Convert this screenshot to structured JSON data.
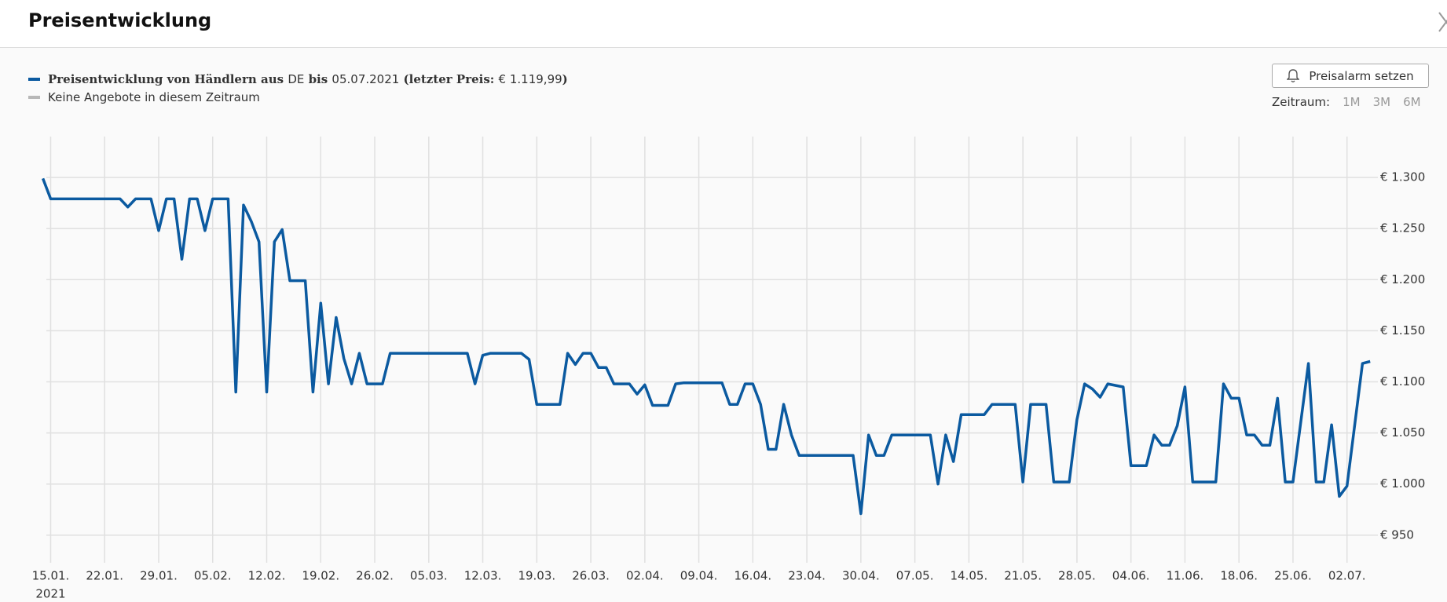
{
  "header": {
    "title": "Preisentwicklung"
  },
  "legend": [
    {
      "parts": [
        "Preisentwicklung von Händlern aus ",
        "DE",
        " bis ",
        "05.07.2021",
        " (letzter Preis: ",
        "€ 1.119,99",
        ")"
      ],
      "color": "#0b5aa0"
    },
    {
      "parts": [
        "Keine Angebote in diesem Zeitraum"
      ],
      "color": "#b8b8b8"
    }
  ],
  "controls": {
    "button": "Preisalarm setzen",
    "range_label": "Zeitraum:",
    "ranges": [
      "1M",
      "3M",
      "6M"
    ]
  },
  "chart_data": {
    "type": "line",
    "color": "#0b5aa0",
    "grid": true,
    "x_year_label": "2021",
    "xlim": [
      "2021-01-12",
      "2021-07-06"
    ],
    "ylim": [
      923,
      1340
    ],
    "xticks": [
      {
        "value": "2021-01-15",
        "label": "15.01."
      },
      {
        "value": "2021-01-22",
        "label": "22.01."
      },
      {
        "value": "2021-01-29",
        "label": "29.01."
      },
      {
        "value": "2021-02-05",
        "label": "05.02."
      },
      {
        "value": "2021-02-12",
        "label": "12.02."
      },
      {
        "value": "2021-02-19",
        "label": "19.02."
      },
      {
        "value": "2021-02-26",
        "label": "26.02."
      },
      {
        "value": "2021-03-05",
        "label": "05.03."
      },
      {
        "value": "2021-03-12",
        "label": "12.03."
      },
      {
        "value": "2021-03-19",
        "label": "19.03."
      },
      {
        "value": "2021-03-26",
        "label": "26.03."
      },
      {
        "value": "2021-04-02",
        "label": "02.04."
      },
      {
        "value": "2021-04-09",
        "label": "09.04."
      },
      {
        "value": "2021-04-16",
        "label": "16.04."
      },
      {
        "value": "2021-04-23",
        "label": "23.04."
      },
      {
        "value": "2021-04-30",
        "label": "30.04."
      },
      {
        "value": "2021-05-07",
        "label": "07.05."
      },
      {
        "value": "2021-05-14",
        "label": "14.05."
      },
      {
        "value": "2021-05-21",
        "label": "21.05."
      },
      {
        "value": "2021-05-28",
        "label": "28.05."
      },
      {
        "value": "2021-06-04",
        "label": "04.06."
      },
      {
        "value": "2021-06-11",
        "label": "11.06."
      },
      {
        "value": "2021-06-18",
        "label": "18.06."
      },
      {
        "value": "2021-06-25",
        "label": "25.06."
      },
      {
        "value": "2021-07-02",
        "label": "02.07."
      }
    ],
    "yticks": [
      {
        "value": 950,
        "label": "€ 950"
      },
      {
        "value": 1000,
        "label": "€ 1.000"
      },
      {
        "value": 1050,
        "label": "€ 1.050"
      },
      {
        "value": 1100,
        "label": "€ 1.100"
      },
      {
        "value": 1150,
        "label": "€ 1.150"
      },
      {
        "value": 1200,
        "label": "€ 1.200"
      },
      {
        "value": 1250,
        "label": "€ 1.250"
      },
      {
        "value": 1300,
        "label": "€ 1.300"
      }
    ],
    "x": [
      "2021-01-14",
      "2021-01-15",
      "2021-01-24",
      "2021-01-25",
      "2021-01-26",
      "2021-01-28",
      "2021-01-29",
      "2021-01-30",
      "2021-01-31",
      "2021-02-01",
      "2021-02-02",
      "2021-02-03",
      "2021-02-04",
      "2021-02-05",
      "2021-02-07",
      "2021-02-08",
      "2021-02-09",
      "2021-02-10",
      "2021-02-11",
      "2021-02-12",
      "2021-02-13",
      "2021-02-14",
      "2021-02-15",
      "2021-02-17",
      "2021-02-18",
      "2021-02-19",
      "2021-02-20",
      "2021-02-21",
      "2021-02-22",
      "2021-02-23",
      "2021-02-24",
      "2021-02-25",
      "2021-02-27",
      "2021-02-28",
      "2021-03-10",
      "2021-03-11",
      "2021-03-12",
      "2021-03-13",
      "2021-03-17",
      "2021-03-18",
      "2021-03-19",
      "2021-03-22",
      "2021-03-23",
      "2021-03-24",
      "2021-03-25",
      "2021-03-26",
      "2021-03-27",
      "2021-03-28",
      "2021-03-29",
      "2021-03-31",
      "2021-04-01",
      "2021-04-02",
      "2021-04-03",
      "2021-04-05",
      "2021-04-06",
      "2021-04-07",
      "2021-04-12",
      "2021-04-13",
      "2021-04-14",
      "2021-04-15",
      "2021-04-16",
      "2021-04-17",
      "2021-04-18",
      "2021-04-19",
      "2021-04-20",
      "2021-04-21",
      "2021-04-22",
      "2021-04-29",
      "2021-04-30",
      "2021-05-01",
      "2021-05-02",
      "2021-05-03",
      "2021-05-04",
      "2021-05-09",
      "2021-05-10",
      "2021-05-11",
      "2021-05-12",
      "2021-05-13",
      "2021-05-16",
      "2021-05-17",
      "2021-05-20",
      "2021-05-21",
      "2021-05-22",
      "2021-05-24",
      "2021-05-25",
      "2021-05-27",
      "2021-05-28",
      "2021-05-29",
      "2021-05-30",
      "2021-05-31",
      "2021-06-01",
      "2021-06-03",
      "2021-06-04",
      "2021-06-06",
      "2021-06-07",
      "2021-06-08",
      "2021-06-09",
      "2021-06-10",
      "2021-06-11",
      "2021-06-12",
      "2021-06-15",
      "2021-06-16",
      "2021-06-17",
      "2021-06-18",
      "2021-06-19",
      "2021-06-20",
      "2021-06-21",
      "2021-06-22",
      "2021-06-23",
      "2021-06-24",
      "2021-06-25",
      "2021-06-27",
      "2021-06-28",
      "2021-06-29",
      "2021-06-30",
      "2021-07-01",
      "2021-07-02",
      "2021-07-04",
      "2021-07-05"
    ],
    "series": [
      {
        "values": [
          1299,
          1279,
          1279,
          1271,
          1279,
          1279,
          1248,
          1279,
          1279,
          1220,
          1279,
          1279,
          1248,
          1279,
          1279,
          1090,
          1273,
          1257,
          1237,
          1090,
          1237,
          1249,
          1199,
          1199,
          1090,
          1177,
          1098,
          1163,
          1123,
          1098,
          1128,
          1098,
          1098,
          1128,
          1128,
          1098,
          1126,
          1128,
          1128,
          1122,
          1078,
          1078,
          1128,
          1117,
          1128,
          1128,
          1114,
          1114,
          1098,
          1098,
          1088,
          1097,
          1077,
          1077,
          1098,
          1099,
          1099,
          1078,
          1078,
          1098,
          1098,
          1078,
          1034,
          1034,
          1078,
          1048,
          1028,
          1028,
          971,
          1048,
          1028,
          1028,
          1048,
          1048,
          1000,
          1048,
          1022,
          1068,
          1068,
          1078,
          1078,
          1002,
          1078,
          1078,
          1002,
          1002,
          1063,
          1098,
          1093,
          1085,
          1098,
          1095,
          1018,
          1018,
          1048,
          1038,
          1038,
          1057,
          1095,
          1002,
          1002,
          1098,
          1084,
          1084,
          1048,
          1048,
          1038,
          1038,
          1084,
          1002,
          1002,
          1118,
          1002,
          1002,
          1058,
          988,
          998,
          1118,
          1120
        ]
      }
    ]
  }
}
